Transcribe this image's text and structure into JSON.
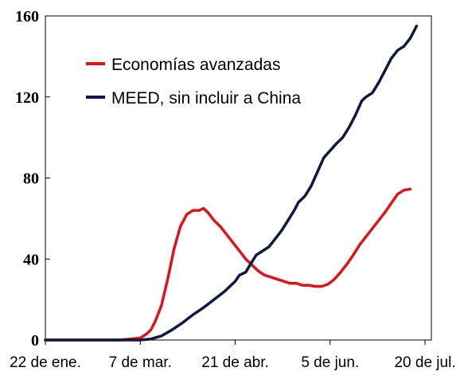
{
  "chart_data": {
    "type": "line",
    "title": "",
    "xlabel": "",
    "ylabel": "",
    "ylim": [
      0,
      160
    ],
    "y_ticks": [
      "0",
      "40",
      "80",
      "120",
      "160"
    ],
    "x_ticks": [
      "22 de ene.",
      "7 de mar.",
      "21 de abr.",
      "5 de jun.",
      "20 de jul."
    ],
    "x_tick_days": [
      0,
      45,
      90,
      135,
      180
    ],
    "x_range_days": [
      0,
      183
    ],
    "grid": false,
    "legend_position": "top-left",
    "series": [
      {
        "name": "Economías avanzadas",
        "color": "#e0131b",
        "points": [
          [
            0,
            0
          ],
          [
            35,
            0
          ],
          [
            40,
            0.5
          ],
          [
            45,
            1
          ],
          [
            48,
            3
          ],
          [
            50,
            5
          ],
          [
            52,
            9
          ],
          [
            55,
            17
          ],
          [
            58,
            30
          ],
          [
            61,
            45
          ],
          [
            64,
            56
          ],
          [
            67,
            62
          ],
          [
            70,
            64
          ],
          [
            73,
            64
          ],
          [
            75,
            65
          ],
          [
            77,
            63
          ],
          [
            80,
            59
          ],
          [
            83,
            56
          ],
          [
            86,
            52
          ],
          [
            89,
            48
          ],
          [
            92,
            44
          ],
          [
            95,
            40
          ],
          [
            98,
            37
          ],
          [
            101,
            34
          ],
          [
            104,
            32
          ],
          [
            107,
            31
          ],
          [
            110,
            30
          ],
          [
            113,
            29
          ],
          [
            116,
            28
          ],
          [
            119,
            28
          ],
          [
            122,
            27
          ],
          [
            125,
            27
          ],
          [
            128,
            26.5
          ],
          [
            131,
            26.5
          ],
          [
            134,
            27.5
          ],
          [
            137,
            30
          ],
          [
            140,
            33.5
          ],
          [
            143,
            37.5
          ],
          [
            146,
            42
          ],
          [
            149,
            47
          ],
          [
            152,
            51
          ],
          [
            155,
            55
          ],
          [
            158,
            59
          ],
          [
            161,
            63
          ],
          [
            164,
            67.5
          ],
          [
            167,
            72
          ],
          [
            170,
            74
          ],
          [
            173,
            74.5
          ]
        ]
      },
      {
        "name": "MEED, sin incluir a China",
        "color": "#0d1845",
        "points": [
          [
            0,
            0
          ],
          [
            45,
            0
          ],
          [
            50,
            0.5
          ],
          [
            55,
            2
          ],
          [
            60,
            5
          ],
          [
            65,
            8.5
          ],
          [
            70,
            12.5
          ],
          [
            75,
            16
          ],
          [
            80,
            20
          ],
          [
            85,
            24
          ],
          [
            90,
            29
          ],
          [
            92,
            32
          ],
          [
            95,
            33.5
          ],
          [
            97,
            37
          ],
          [
            100,
            42
          ],
          [
            103,
            44
          ],
          [
            106,
            46
          ],
          [
            109,
            50
          ],
          [
            112,
            54
          ],
          [
            115,
            59
          ],
          [
            118,
            64
          ],
          [
            120,
            68
          ],
          [
            123,
            71
          ],
          [
            126,
            76
          ],
          [
            129,
            83
          ],
          [
            132,
            90
          ],
          [
            135,
            93.5
          ],
          [
            138,
            97
          ],
          [
            141,
            100
          ],
          [
            144,
            105
          ],
          [
            147,
            111
          ],
          [
            150,
            118
          ],
          [
            152,
            120
          ],
          [
            155,
            122
          ],
          [
            158,
            127
          ],
          [
            161,
            133
          ],
          [
            164,
            139
          ],
          [
            167,
            143
          ],
          [
            170,
            145
          ],
          [
            173,
            149
          ],
          [
            175,
            153
          ],
          [
            176,
            155
          ]
        ]
      }
    ]
  }
}
